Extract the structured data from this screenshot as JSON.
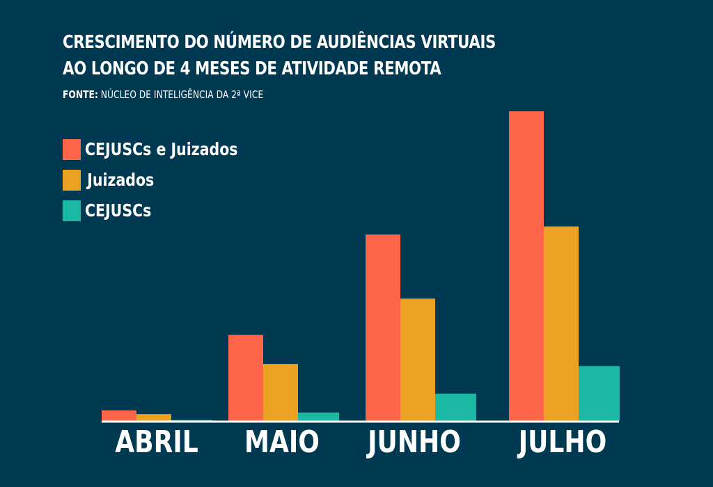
{
  "title_lines": [
    "CRESCIMENTO DO NÚMERO DE AUDIÊNCIAS VIRTUAIS",
    "AO LONGO DE 4 MESES DE ATIVIDADE REMOTA"
  ],
  "source": {
    "label": "FONTE:",
    "text": " NÚCLEO DE INTELIGÊNCIA DA 2ª VICE"
  },
  "colors": {
    "background": "#003a52",
    "cejuscs_e_juizados": "#ff6548",
    "juizados": "#eba122",
    "cejuscs": "#1bb9a4",
    "baseline": "#ffffff"
  },
  "chart_data": {
    "type": "bar",
    "title": "CRESCIMENTO DO NÚMERO DE AUDIÊNCIAS VIRTUAIS AO LONGO DE 4 MESES DE ATIVIDADE REMOTA",
    "xlabel": "",
    "ylabel": "",
    "categories": [
      "ABRIL",
      "MAIO",
      "JUNHO",
      "JULHO"
    ],
    "series": [
      {
        "name": "CEJUSCs e Juizados",
        "color": "#ff6548",
        "values": [
          3.4,
          27.8,
          60.2,
          100
        ]
      },
      {
        "name": "Juizados",
        "color": "#eba122",
        "values": [
          2.2,
          18.4,
          39.5,
          62.8
        ]
      },
      {
        "name": "CEJUSCs",
        "color": "#1bb9a4",
        "values": [
          0.3,
          2.7,
          8.8,
          17.7
        ]
      }
    ],
    "ylim": [
      0,
      100
    ],
    "grid": false,
    "legend_position": "top-left"
  }
}
